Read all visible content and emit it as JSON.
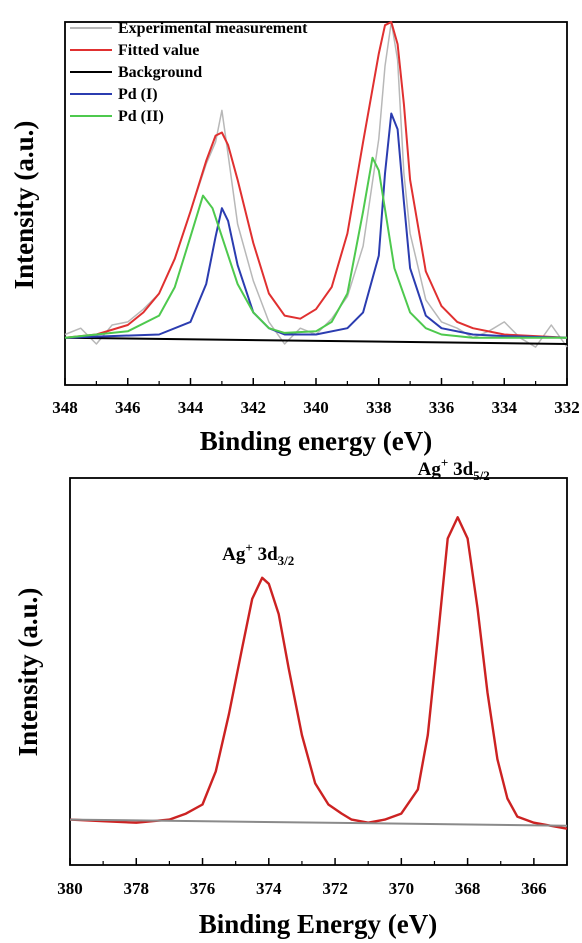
{
  "chart_data": [
    {
      "type": "line",
      "xlabel": "Binding energy (eV)",
      "ylabel": "Intensity (a.u.)",
      "xlim": [
        348,
        332
      ],
      "x_reversed": true,
      "ylim": [
        -0.15,
        1.0
      ],
      "yticks_shown": false,
      "grid": false,
      "legend": "top-left",
      "x_ticks": [
        "348",
        "346",
        "344",
        "342",
        "340",
        "338",
        "336",
        "334",
        "332"
      ],
      "series": [
        {
          "name": "Experimental measurement",
          "color": "#b8b8b8",
          "x": [
            348,
            347.5,
            347,
            346.5,
            346,
            345.5,
            345,
            344.5,
            344,
            343.5,
            343.2,
            343,
            342.8,
            342.5,
            342,
            341.5,
            341,
            340.5,
            340,
            339.5,
            339,
            338.5,
            338,
            337.8,
            337.6,
            337.4,
            337.2,
            337,
            336.5,
            336,
            335.5,
            335,
            334.5,
            334,
            333.5,
            333,
            332.5,
            332
          ],
          "y": [
            0.01,
            0.03,
            -0.02,
            0.04,
            0.05,
            0.09,
            0.14,
            0.25,
            0.4,
            0.55,
            0.62,
            0.72,
            0.58,
            0.36,
            0.18,
            0.05,
            -0.02,
            0.03,
            0.01,
            0.06,
            0.13,
            0.29,
            0.63,
            0.86,
            1.0,
            0.88,
            0.52,
            0.33,
            0.12,
            0.05,
            0.03,
            0.0,
            0.02,
            0.05,
            0.0,
            -0.03,
            0.04,
            -0.03
          ]
        },
        {
          "name": "Fitted value",
          "color": "#e03030",
          "x": [
            348,
            347,
            346,
            345.5,
            345,
            344.5,
            344,
            343.5,
            343.2,
            343,
            342.8,
            342.5,
            342,
            341.5,
            341,
            340.5,
            340,
            339.5,
            339,
            338.5,
            338,
            337.8,
            337.6,
            337.4,
            337.2,
            337,
            336.5,
            336,
            335.5,
            335,
            334,
            333,
            332
          ],
          "y": [
            0.0,
            0.01,
            0.04,
            0.08,
            0.14,
            0.25,
            0.4,
            0.56,
            0.64,
            0.65,
            0.61,
            0.5,
            0.3,
            0.14,
            0.07,
            0.06,
            0.09,
            0.16,
            0.33,
            0.62,
            0.9,
            0.99,
            1.0,
            0.93,
            0.74,
            0.5,
            0.21,
            0.1,
            0.05,
            0.03,
            0.01,
            0.005,
            0.0
          ]
        },
        {
          "name": "Background",
          "color": "#000000",
          "x": [
            348,
            332
          ],
          "y": [
            0.0,
            -0.02
          ]
        },
        {
          "name": "Pd (I)",
          "color": "#2b3cb0",
          "x": [
            348,
            345,
            344,
            343.5,
            343.2,
            343,
            342.8,
            342.5,
            342,
            341.5,
            341,
            340,
            339,
            338.5,
            338,
            337.8,
            337.6,
            337.4,
            337.2,
            337,
            336.5,
            336,
            335,
            334,
            332
          ],
          "y": [
            0.0,
            0.01,
            0.05,
            0.17,
            0.32,
            0.41,
            0.37,
            0.23,
            0.08,
            0.03,
            0.01,
            0.01,
            0.03,
            0.08,
            0.26,
            0.52,
            0.71,
            0.66,
            0.43,
            0.22,
            0.07,
            0.03,
            0.01,
            0.005,
            0.0
          ]
        },
        {
          "name": "Pd (II)",
          "color": "#4ec94e",
          "x": [
            348,
            346,
            345,
            344.5,
            344,
            343.6,
            343.3,
            343,
            342.5,
            342,
            341.5,
            341,
            340,
            339.5,
            339,
            338.5,
            338.2,
            338,
            337.5,
            337,
            336.5,
            336,
            335,
            334,
            332
          ],
          "y": [
            0.0,
            0.02,
            0.07,
            0.16,
            0.32,
            0.45,
            0.41,
            0.32,
            0.17,
            0.08,
            0.03,
            0.015,
            0.02,
            0.05,
            0.14,
            0.4,
            0.57,
            0.53,
            0.22,
            0.08,
            0.03,
            0.01,
            0.0,
            0.0,
            0.0
          ]
        }
      ]
    },
    {
      "type": "line",
      "xlabel": "Binding Energy (eV)",
      "ylabel": "Intensity (a.u.)",
      "xlim": [
        380,
        365
      ],
      "x_reversed": true,
      "ylim": [
        -0.15,
        1.13
      ],
      "yticks_shown": false,
      "grid": false,
      "x_ticks": [
        "380",
        "378",
        "376",
        "374",
        "372",
        "370",
        "368",
        "366"
      ],
      "annotations": [
        {
          "base": "Ag",
          "sup": "+",
          "main": " 3d",
          "sub": "3/2",
          "x": 374.2,
          "y": 0.8
        },
        {
          "base": "Ag",
          "sup": "+",
          "main": " 3d",
          "sub": "5/2",
          "x": 368.3,
          "y": 1.08
        }
      ],
      "series": [
        {
          "name": "",
          "color": "#cc2222",
          "x": [
            380,
            379,
            378,
            377,
            376.5,
            376,
            375.6,
            375.2,
            374.8,
            374.5,
            374.2,
            374.0,
            373.7,
            373.4,
            373.0,
            372.6,
            372.2,
            371.8,
            371.5,
            371,
            370.5,
            370,
            369.5,
            369.2,
            368.9,
            368.6,
            368.3,
            368.0,
            367.7,
            367.4,
            367.1,
            366.8,
            366.5,
            366,
            365.5,
            365
          ],
          "y": [
            0.0,
            -0.005,
            -0.01,
            0.0,
            0.02,
            0.05,
            0.16,
            0.35,
            0.57,
            0.73,
            0.8,
            0.78,
            0.68,
            0.5,
            0.28,
            0.12,
            0.05,
            0.02,
            0.0,
            -0.01,
            0.0,
            0.02,
            0.1,
            0.28,
            0.6,
            0.93,
            1.0,
            0.93,
            0.7,
            0.42,
            0.2,
            0.07,
            0.01,
            -0.01,
            -0.02,
            -0.03
          ]
        },
        {
          "name": "",
          "color": "#8a8a8a",
          "x": [
            380,
            365
          ],
          "y": [
            0.0,
            -0.02
          ]
        }
      ]
    }
  ]
}
